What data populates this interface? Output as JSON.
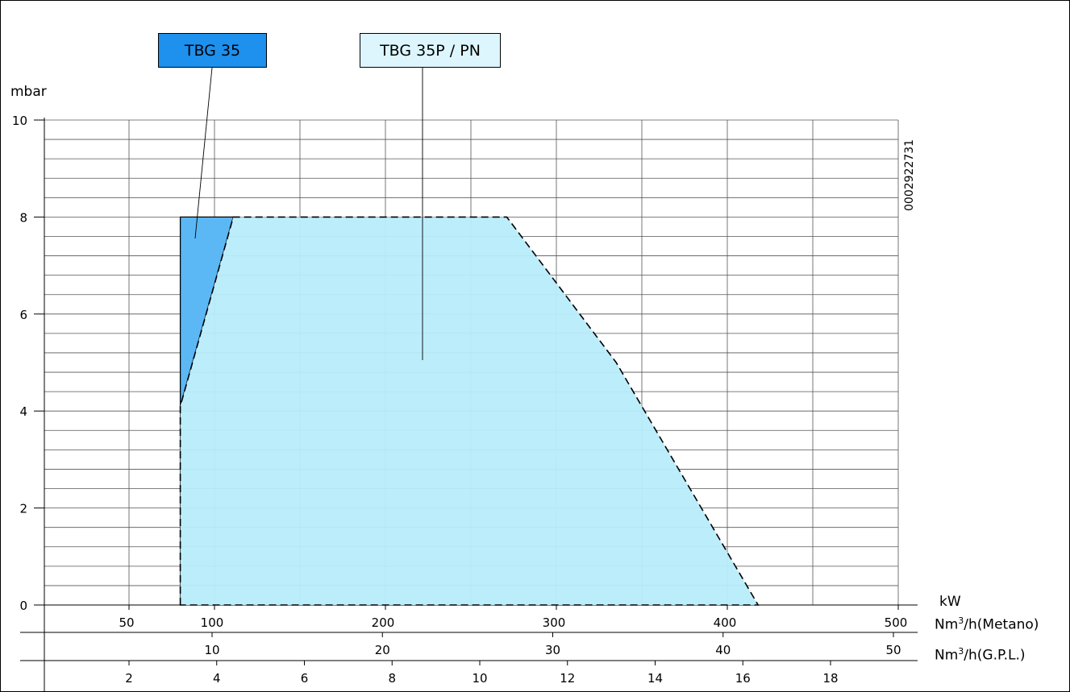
{
  "chart_data": {
    "type": "area",
    "yunit": "mbar",
    "ylim": [
      0,
      10
    ],
    "yticks": [
      0,
      2,
      4,
      6,
      8,
      10
    ],
    "x_axes": [
      {
        "unit": "kW",
        "lim": [
          0,
          500
        ],
        "ticks": [
          50,
          100,
          200,
          300,
          400,
          500
        ],
        "tick_labels": [
          "50",
          "100",
          "200",
          "300",
          "400",
          "500"
        ]
      },
      {
        "unit": "Nm³/h(Metano)",
        "unit_base": "Nm",
        "unit_sup": "3",
        "unit_rest": "/h(Metano)",
        "ticks": [
          10,
          20,
          30,
          40,
          50
        ],
        "tick_labels": [
          "10",
          "20",
          "30",
          "40",
          "50"
        ]
      },
      {
        "unit": "Nm³/h(G.P.L.)",
        "unit_base": "Nm",
        "unit_sup": "3",
        "unit_rest": "/h(G.P.L.)",
        "ticks": [
          2,
          4,
          6,
          8,
          10,
          12,
          14,
          16,
          18
        ],
        "tick_labels": [
          "2",
          "4",
          "6",
          "8",
          "10",
          "12",
          "14",
          "16",
          "18"
        ]
      }
    ],
    "series": [
      {
        "name": "TBG 35",
        "color": "#5bb8f5",
        "points": [
          [
            80,
            0
          ],
          [
            80,
            8
          ],
          [
            111,
            8
          ],
          [
            80,
            4.1
          ]
        ]
      },
      {
        "name": "TBG 35P / PN",
        "color": "#b8ecfb",
        "points": [
          [
            80,
            0
          ],
          [
            80,
            4.1
          ],
          [
            111,
            8
          ],
          [
            271,
            8
          ],
          [
            335,
            5.0
          ],
          [
            418,
            0
          ]
        ]
      }
    ],
    "grid": true,
    "code": "0002922731"
  },
  "labels": {
    "series_a": "TBG 35",
    "series_b": "TBG 35P / PN",
    "y_unit": "mbar",
    "x_unit": "kW",
    "code": "0002922731"
  }
}
